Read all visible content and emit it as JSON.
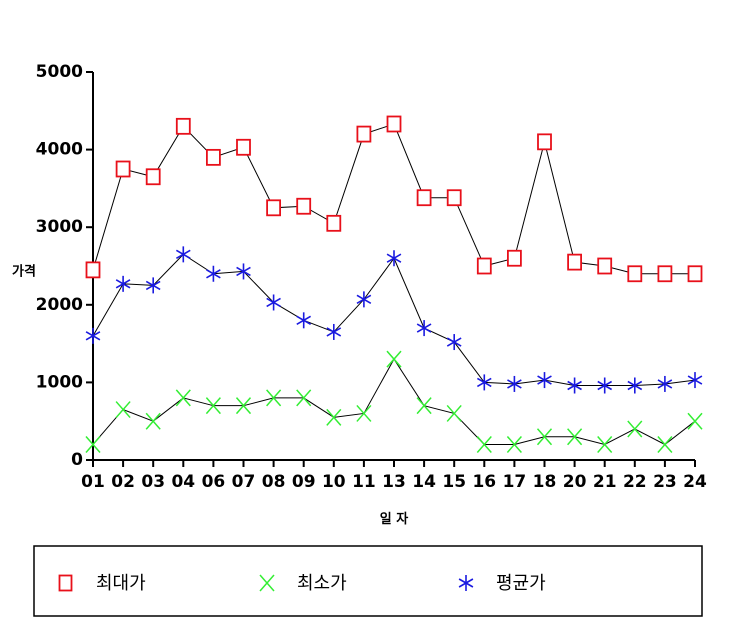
{
  "chart_data": {
    "type": "line",
    "title": "",
    "xlabel": "일 자",
    "ylabel": "가격",
    "ylim": [
      0,
      5000
    ],
    "yticks": [
      0,
      1000,
      2000,
      3000,
      4000,
      5000
    ],
    "categories": [
      "01",
      "02",
      "03",
      "04",
      "06",
      "07",
      "08",
      "09",
      "10",
      "11",
      "13",
      "14",
      "15",
      "16",
      "17",
      "18",
      "20",
      "21",
      "22",
      "23",
      "24"
    ],
    "series": [
      {
        "name": "최대가",
        "marker": "square",
        "marker_color": "#e8101a",
        "values": [
          2450,
          3750,
          3650,
          4300,
          3900,
          4030,
          3250,
          3270,
          3050,
          4200,
          4330,
          3380,
          3380,
          2500,
          2600,
          4100,
          2550,
          2500,
          2400,
          2400,
          2400
        ]
      },
      {
        "name": "최소가",
        "marker": "x",
        "marker_color": "#33ee33",
        "values": [
          200,
          650,
          500,
          800,
          700,
          700,
          800,
          800,
          550,
          600,
          1300,
          700,
          600,
          200,
          200,
          300,
          300,
          200,
          400,
          200,
          500
        ]
      },
      {
        "name": "평균가",
        "marker": "asterisk",
        "marker_color": "#1a1ae0",
        "values": [
          1600,
          2270,
          2250,
          2650,
          2400,
          2430,
          2030,
          1800,
          1650,
          2070,
          2600,
          1700,
          1520,
          1000,
          980,
          1030,
          960,
          960,
          960,
          980,
          1030
        ]
      }
    ],
    "line_color": "#000000",
    "grid": false,
    "legend_position": "bottom"
  }
}
